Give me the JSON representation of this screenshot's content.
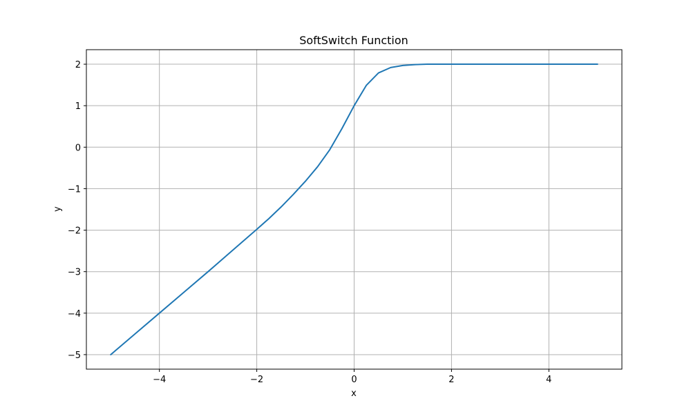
{
  "chart_data": {
    "type": "line",
    "title": "SoftSwitch Function",
    "xlabel": "x",
    "ylabel": "y",
    "xlim": [
      -5.5,
      5.5
    ],
    "ylim": [
      -5.35,
      2.35
    ],
    "grid": true,
    "colors": {
      "line": "#1f77b4",
      "grid": "#b0b0b0",
      "axes": "#000000"
    },
    "x_ticks": [
      {
        "value": -4,
        "label": "−4"
      },
      {
        "value": -2,
        "label": "−2"
      },
      {
        "value": 0,
        "label": "0"
      },
      {
        "value": 2,
        "label": "2"
      },
      {
        "value": 4,
        "label": "4"
      }
    ],
    "y_ticks": [
      {
        "value": 2,
        "label": "2"
      },
      {
        "value": 1,
        "label": "1"
      },
      {
        "value": 0,
        "label": "0"
      },
      {
        "value": -1,
        "label": "−1"
      },
      {
        "value": -2,
        "label": "−2"
      },
      {
        "value": -3,
        "label": "−3"
      },
      {
        "value": -4,
        "label": "−4"
      },
      {
        "value": -5,
        "label": "−5"
      }
    ],
    "series": [
      {
        "x": [
          -5,
          -4.5,
          -4,
          -3.5,
          -3,
          -2.5,
          -2,
          -1.75,
          -1.5,
          -1.25,
          -1,
          -0.75,
          -0.5,
          -0.25,
          0,
          0.25,
          0.5,
          0.75,
          1,
          1.25,
          1.5,
          2,
          2.5,
          3,
          3.5,
          4,
          4.5,
          5
        ],
        "y": [
          -5,
          -4.5,
          -4,
          -3.5,
          -3,
          -2.49,
          -1.98,
          -1.72,
          -1.44,
          -1.14,
          -0.82,
          -0.47,
          -0.06,
          0.45,
          1.0,
          1.49,
          1.79,
          1.92,
          1.97,
          1.99,
          2.0,
          2.0,
          2.0,
          2.0,
          2.0,
          2.0,
          2.0,
          2.0
        ]
      }
    ]
  }
}
